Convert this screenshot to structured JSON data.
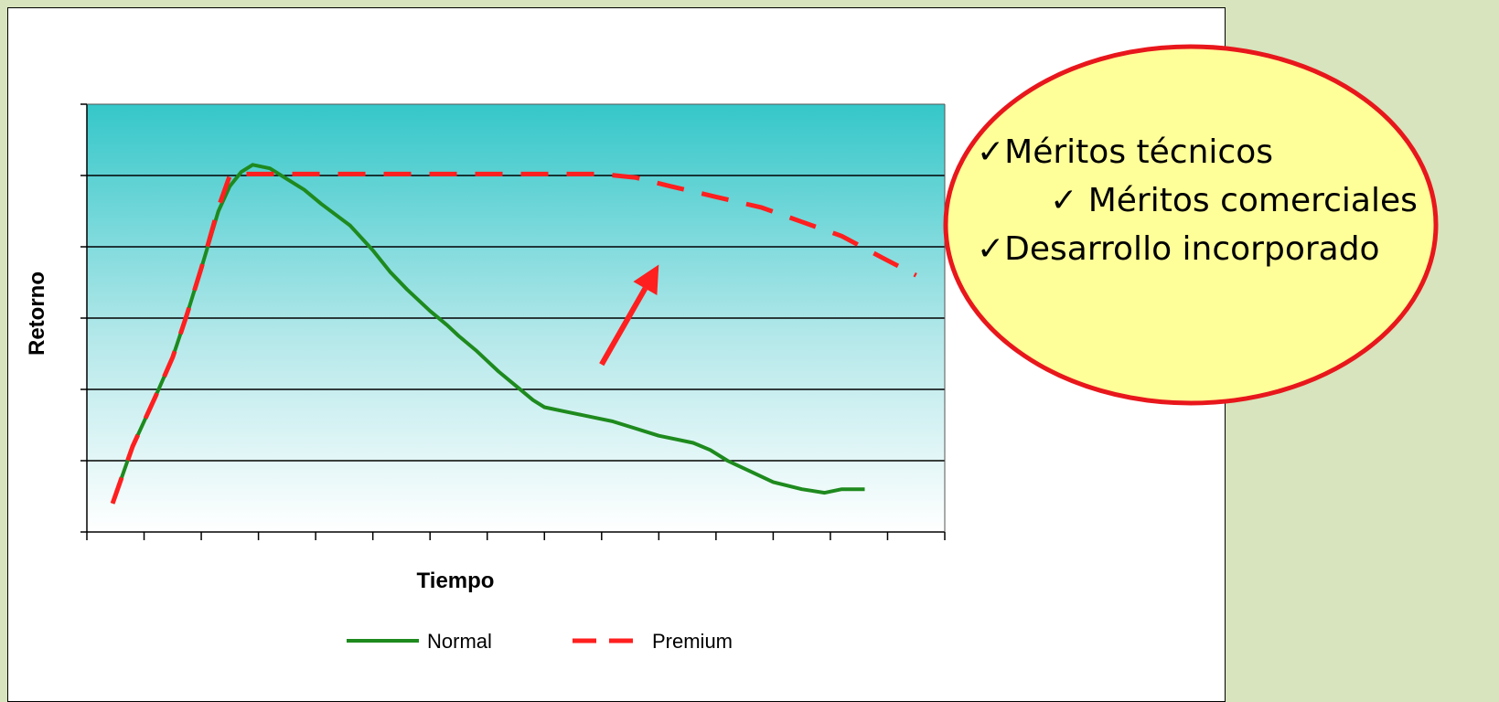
{
  "chart_data": {
    "type": "line",
    "title": "",
    "xlabel": "Tiempo",
    "ylabel": "Retorno",
    "xlim": [
      0,
      15
    ],
    "ylim": [
      0,
      6
    ],
    "x_tick_count": 16,
    "y_gridlines": [
      1,
      2,
      3,
      4,
      5
    ],
    "grid": true,
    "legend": {
      "placement": "bottom",
      "entries": [
        "Normal",
        "Premium"
      ]
    },
    "series": [
      {
        "name": "Normal",
        "color": "#1e8a1e",
        "style": "solid",
        "x": [
          0.45,
          0.8,
          1.2,
          1.5,
          1.75,
          2.0,
          2.3,
          2.5,
          2.7,
          2.9,
          3.2,
          3.5,
          3.8,
          4.1,
          4.6,
          5.0,
          5.3,
          5.6,
          6.0,
          6.3,
          6.5,
          6.8,
          7.0,
          7.2,
          7.5,
          7.8,
          8.0,
          8.3,
          8.6,
          8.9,
          9.2,
          9.6,
          10.0,
          10.3,
          10.6,
          10.9,
          11.2,
          11.6,
          12.0,
          12.5,
          12.9,
          13.2,
          13.6
        ],
        "y": [
          0.4,
          1.2,
          1.9,
          2.45,
          3.05,
          3.7,
          4.5,
          4.85,
          5.05,
          5.15,
          5.1,
          4.95,
          4.8,
          4.6,
          4.3,
          3.95,
          3.65,
          3.4,
          3.1,
          2.9,
          2.75,
          2.55,
          2.4,
          2.25,
          2.05,
          1.85,
          1.75,
          1.7,
          1.65,
          1.6,
          1.55,
          1.45,
          1.35,
          1.3,
          1.25,
          1.15,
          1.0,
          0.85,
          0.7,
          0.6,
          0.55,
          0.6,
          0.6
        ]
      },
      {
        "name": "Premium",
        "color": "#ff1f1f",
        "style": "dashed",
        "x": [
          0.45,
          0.8,
          1.2,
          1.5,
          1.75,
          2.0,
          2.3,
          2.5,
          2.6,
          3.0,
          4.0,
          5.0,
          6.0,
          7.0,
          8.0,
          9.0,
          9.6,
          10.2,
          11.0,
          11.8,
          12.5,
          13.2,
          13.9,
          14.5
        ],
        "y": [
          0.4,
          1.2,
          1.9,
          2.45,
          3.05,
          3.7,
          4.55,
          5.0,
          5.02,
          5.02,
          5.02,
          5.02,
          5.02,
          5.02,
          5.02,
          5.02,
          4.97,
          4.85,
          4.7,
          4.55,
          4.35,
          4.15,
          3.85,
          3.6
        ]
      }
    ],
    "annotation_arrow": {
      "from": [
        9.0,
        2.35
      ],
      "to": [
        10.0,
        3.75
      ],
      "color": "#ff1f1f"
    },
    "callout": {
      "items": [
        "Méritos técnicos",
        " Méritos comerciales",
        "Desarrollo incorporado"
      ],
      "check_mark": "✓",
      "fill": "#ffff99",
      "stroke": "#e8171c"
    }
  },
  "colors": {
    "slide_background": "#d7e4bd",
    "plot_gradient_top": "#35c7c9",
    "plot_gradient_bottom": "#ffffff"
  }
}
